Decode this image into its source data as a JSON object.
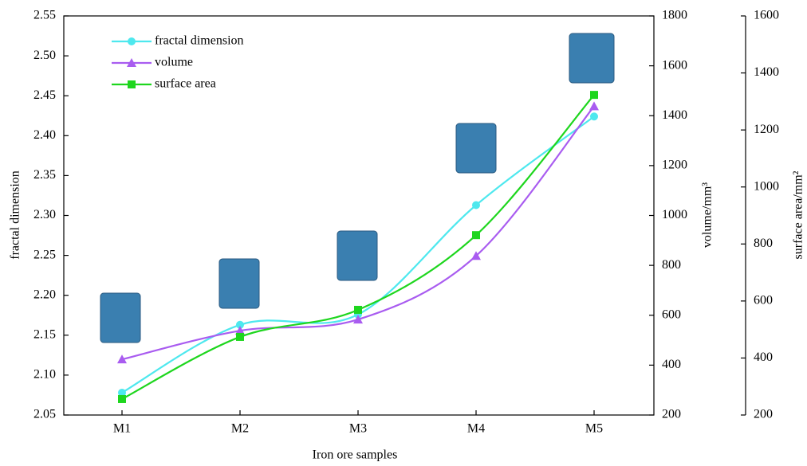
{
  "chart_data": {
    "type": "line",
    "x_label": "Iron ore samples",
    "y_label": "fractal dimension",
    "y2_label": "volume/mm³",
    "y3_label": "surface area/mm²",
    "categories": [
      "M1",
      "M2",
      "M3",
      "M4",
      "M5"
    ],
    "series": [
      {
        "name": "fractal dimension",
        "color": "#4ee8ee",
        "marker": "circle",
        "values": [
          2.078,
          2.163,
          2.176,
          2.313,
          2.424
        ]
      },
      {
        "name": "volume",
        "color": "#a95cf0",
        "marker": "triangle",
        "axis": "y2",
        "values": [
          423,
          538,
          583,
          838,
          1438
        ]
      },
      {
        "name": "surface area",
        "color": "#1ed61e",
        "marker": "square",
        "axis": "y3",
        "values": [
          256,
          474,
          569,
          831,
          1323
        ]
      }
    ],
    "ylim": [
      2.05,
      2.55
    ],
    "yticks": [
      {
        "value": 2.05,
        "label": "2.05"
      },
      {
        "value": 2.1,
        "label": "2.10"
      },
      {
        "value": 2.15,
        "label": "2.15"
      },
      {
        "value": 2.2,
        "label": "2.20"
      },
      {
        "value": 2.25,
        "label": "2.25"
      },
      {
        "value": 2.3,
        "label": "2.30"
      },
      {
        "value": 2.35,
        "label": "2.35"
      },
      {
        "value": 2.4,
        "label": "2.40"
      },
      {
        "value": 2.45,
        "label": "2.45"
      },
      {
        "value": 2.5,
        "label": "2.50"
      },
      {
        "value": 2.55,
        "label": "2.55"
      }
    ],
    "y2lim": [
      200,
      1800
    ],
    "y2ticks": [
      200,
      400,
      600,
      800,
      1000,
      1200,
      1400,
      1600,
      1800
    ],
    "y3lim": [
      200,
      1600
    ],
    "y3ticks": [
      200,
      400,
      600,
      800,
      1000,
      1200,
      1400,
      1600
    ],
    "legend": "upper left"
  }
}
